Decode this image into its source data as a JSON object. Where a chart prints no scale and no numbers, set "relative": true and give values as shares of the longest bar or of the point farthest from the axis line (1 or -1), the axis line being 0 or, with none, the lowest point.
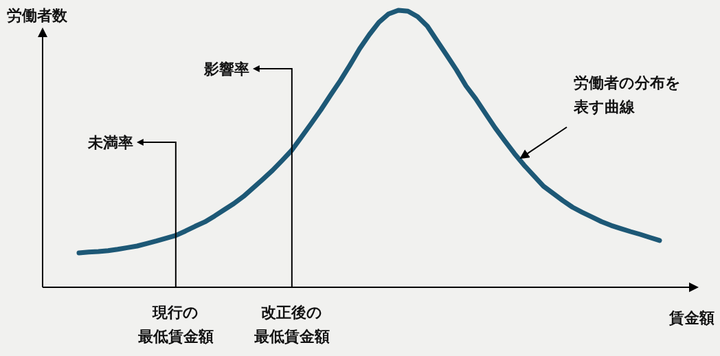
{
  "chart_data": {
    "type": "line",
    "relative": true,
    "ylabel": "労働者数",
    "xlabel": "賃金額",
    "categories": [
      null,
      null,
      null,
      null,
      null,
      null,
      null,
      null,
      null,
      null,
      "現行の最低賃金額",
      null,
      null,
      null,
      null,
      null,
      null,
      null,
      null,
      null,
      null,
      null,
      "改正後の最低賃金額",
      null,
      null,
      null,
      null,
      null,
      null,
      null,
      null,
      null,
      null,
      null,
      null,
      null,
      null,
      null,
      null,
      null,
      null,
      null,
      null,
      null,
      null,
      null,
      null,
      null,
      null,
      null,
      null,
      null,
      null,
      null,
      null,
      null,
      null,
      null,
      null,
      null,
      null
    ],
    "series": [
      {
        "color": "#1d5876",
        "values": [
          0.124,
          0.127,
          0.129,
          0.132,
          0.137,
          0.143,
          0.149,
          0.158,
          0.167,
          0.177,
          0.187,
          0.203,
          0.22,
          0.236,
          0.257,
          0.28,
          0.302,
          0.328,
          0.359,
          0.39,
          0.422,
          0.458,
          0.495,
          0.543,
          0.591,
          0.641,
          0.694,
          0.746,
          0.802,
          0.861,
          0.912,
          0.957,
          0.987,
          1,
          0.997,
          0.977,
          0.943,
          0.89,
          0.838,
          0.785,
          0.727,
          0.681,
          0.628,
          0.576,
          0.529,
          0.483,
          0.441,
          0.403,
          0.365,
          0.339,
          0.313,
          0.289,
          0.271,
          0.254,
          0.237,
          0.223,
          0.212,
          0.201,
          0.191,
          0.18,
          0.169
        ]
      }
    ],
    "annotations": [
      "未満率",
      "影響率",
      "労働者の分布を表す曲線"
    ]
  }
}
